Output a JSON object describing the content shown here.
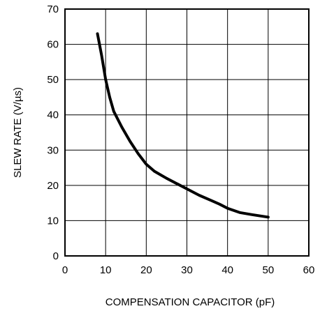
{
  "chart_data": {
    "type": "line",
    "title": "",
    "xlabel": "COMPENSATION CAPACITOR (pF)",
    "ylabel": "SLEW RATE (V/µs)",
    "xlim": [
      0,
      60
    ],
    "ylim": [
      0,
      70
    ],
    "x_ticks": [
      "0",
      "10",
      "20",
      "30",
      "40",
      "50",
      "60"
    ],
    "y_ticks": [
      "0",
      "10",
      "20",
      "30",
      "40",
      "50",
      "60",
      "70"
    ],
    "grid": true,
    "legend": "none",
    "series": [
      {
        "x": [
          8,
          9,
          10,
          11,
          12,
          14,
          16,
          18,
          20,
          22,
          25,
          28,
          30,
          33,
          36,
          38,
          40,
          43,
          46,
          50
        ],
        "y": [
          63,
          57,
          50,
          45,
          41,
          36.5,
          32.5,
          29,
          26,
          24,
          22,
          20.2,
          19,
          17.2,
          15.7,
          14.7,
          13.5,
          12.3,
          11.7,
          11
        ]
      }
    ],
    "colors": {
      "line": "#000000",
      "grid": "#000000",
      "background": "#ffffff"
    }
  }
}
